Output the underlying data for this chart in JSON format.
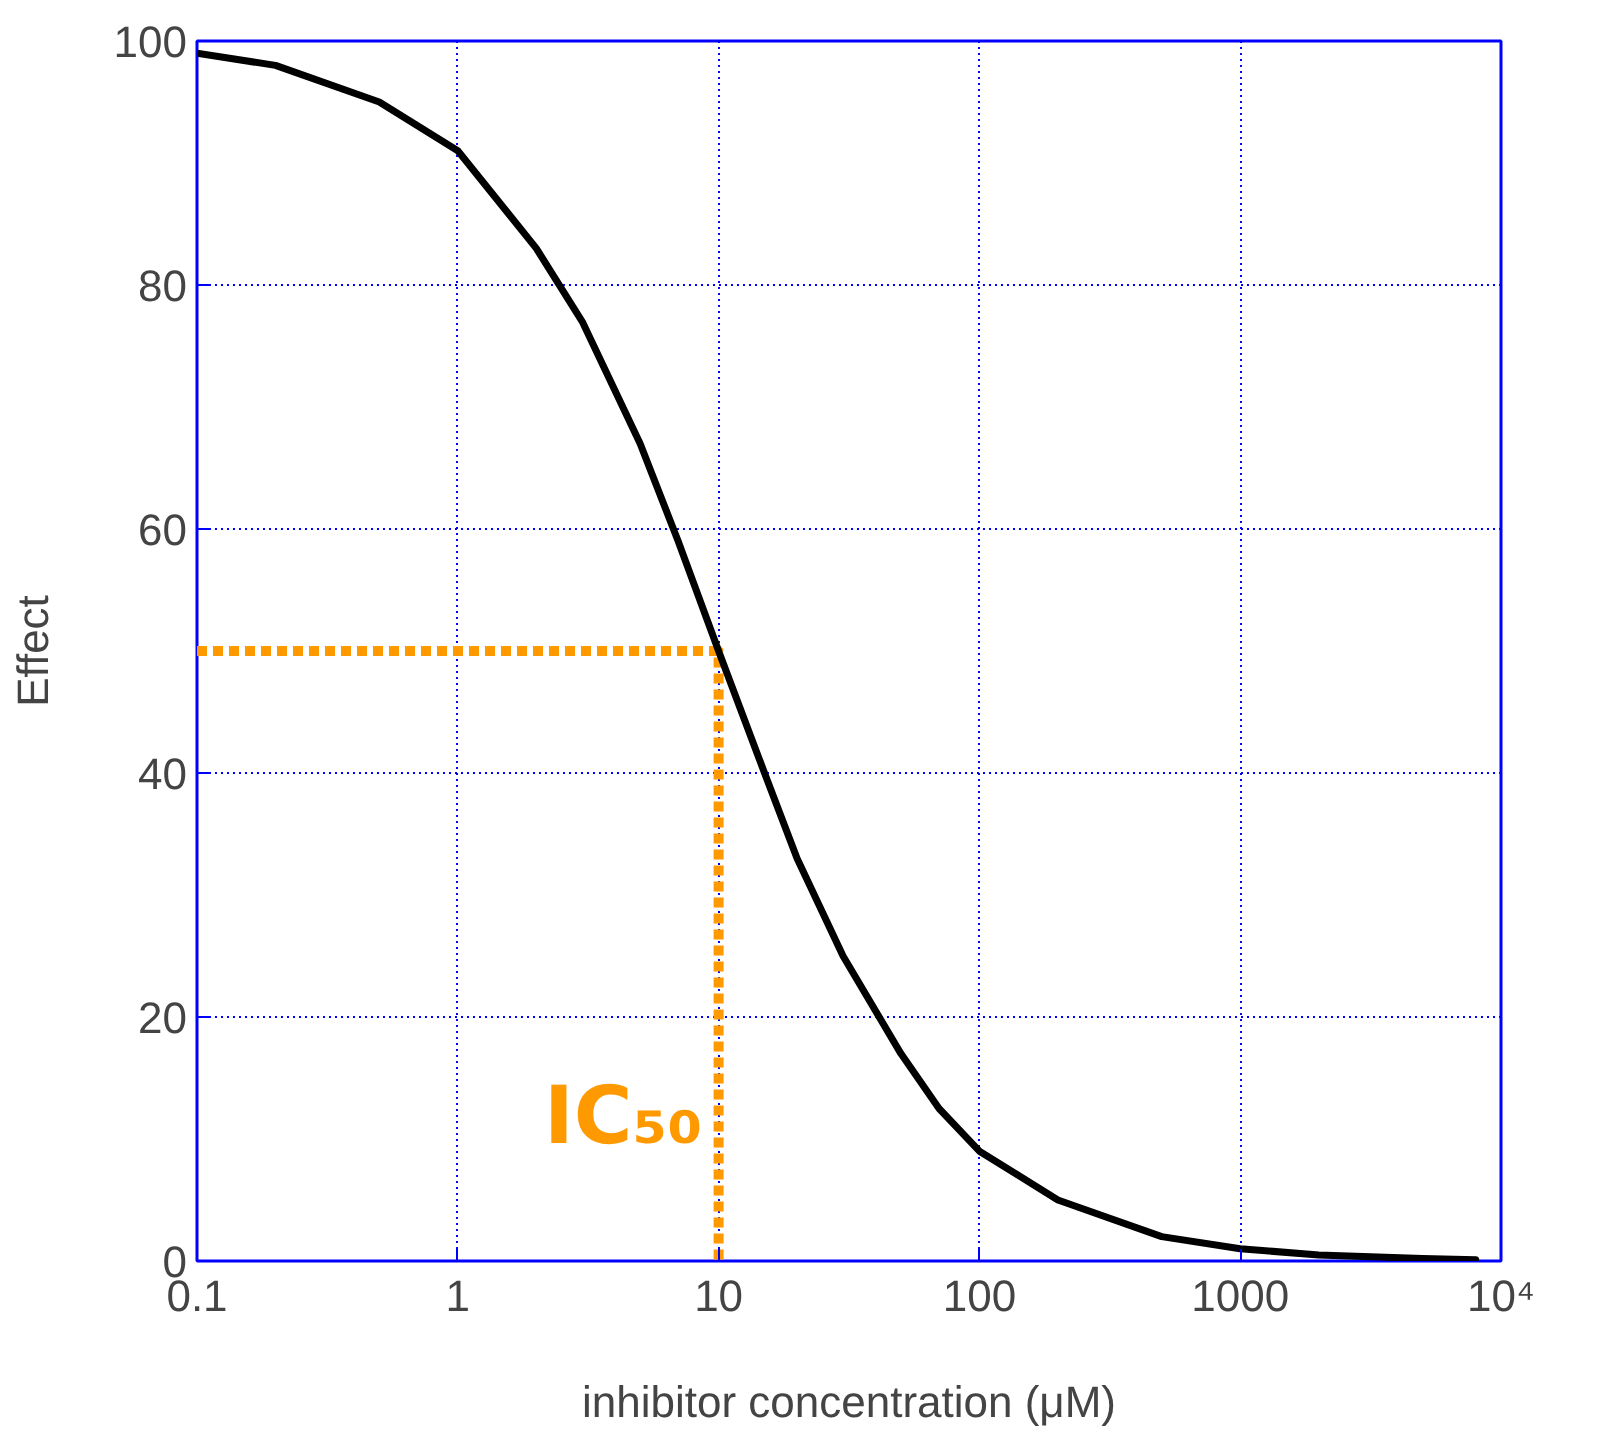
{
  "chart_data": {
    "type": "line",
    "xlabel": "inhibitor concentration (μM)",
    "ylabel": "Effect",
    "log": "x",
    "grid": true,
    "xlim": [
      0.1,
      10000
    ],
    "ylim": [
      0,
      100
    ],
    "xticks": [
      0.1,
      1,
      10,
      100,
      1000,
      {
        "value": 10000,
        "label": "10⁴"
      }
    ],
    "yticks": [
      0,
      20,
      40,
      60,
      80,
      100
    ],
    "series": [
      {
        "type": "line",
        "color": "#ff9900",
        "line_style": "dotted",
        "x": [
          0.1,
          10,
          10
        ],
        "values": [
          50,
          50,
          0
        ]
      },
      {
        "color": "#000000",
        "line_style": "solid",
        "x": [
          0.1,
          0.2,
          0.5,
          1,
          2,
          3,
          5,
          7,
          10,
          15,
          20,
          30,
          50,
          70,
          100,
          200,
          500,
          1000,
          2000,
          5000,
          8000
        ],
        "values": [
          99,
          98,
          95,
          91,
          83,
          77,
          67,
          59,
          50,
          40,
          33,
          25,
          17,
          12.5,
          9,
          5,
          2,
          1,
          0.5,
          0.2,
          0.1
        ]
      }
    ],
    "annotations": [
      {
        "text": "IC₅₀",
        "x": 10,
        "y": 8
      }
    ]
  }
}
